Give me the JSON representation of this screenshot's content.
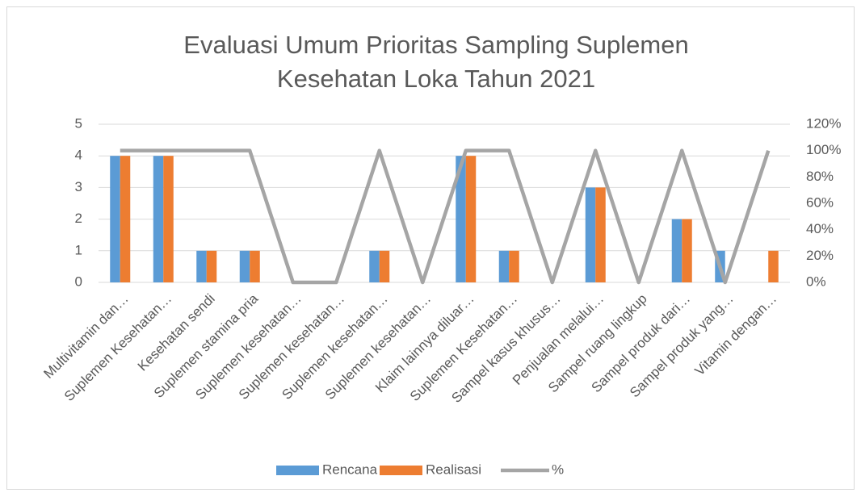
{
  "chart_data": {
    "type": "bar",
    "title": [
      "Evaluasi Umum Prioritas Sampling Suplemen",
      "Kesehatan Loka Tahun 2021"
    ],
    "categories": [
      "Multivitamin dan…",
      "Suplemen Kesehatan…",
      "Kesehatan sendi",
      "Suplemen stamina pria",
      "Suplemen kesehatan…",
      "Suplemen kesehatan…",
      "Suplemen kesehatan…",
      "Suplemen kesehatan…",
      "Klaim lainnya diluar…",
      "Suplemen Kesehatan…",
      "Sampel kasus khusus…",
      "Penjualan melalui…",
      "Sampel ruang lingkup",
      "Sampel produk dari…",
      "Sampel produk yang…",
      "Vitamin dengan…"
    ],
    "series": [
      {
        "name": "Rencana",
        "color": "#5b9bd5",
        "type": "bar",
        "values": [
          4,
          4,
          1,
          1,
          0,
          0,
          1,
          0,
          4,
          1,
          0,
          3,
          0,
          2,
          1,
          0
        ]
      },
      {
        "name": "Realisasi",
        "color": "#ed7d31",
        "type": "bar",
        "values": [
          4,
          4,
          1,
          1,
          0,
          0,
          1,
          0,
          4,
          1,
          0,
          3,
          0,
          2,
          0,
          1
        ]
      },
      {
        "name": "%",
        "color": "#a5a5a5",
        "type": "line",
        "axis": "y2",
        "values": [
          100,
          100,
          100,
          100,
          0,
          0,
          100,
          0,
          100,
          100,
          0,
          100,
          0,
          100,
          0,
          100
        ]
      }
    ],
    "ylim": [
      0,
      5
    ],
    "yticks": [
      0,
      1,
      2,
      3,
      4,
      5
    ],
    "y2lim": [
      0,
      120
    ],
    "y2ticks": [
      {
        "value": 0,
        "label": "0%"
      },
      {
        "value": 20,
        "label": "20%"
      },
      {
        "value": 40,
        "label": "40%"
      },
      {
        "value": 60,
        "label": "60%"
      },
      {
        "value": 80,
        "label": "80%"
      },
      {
        "value": 100,
        "label": "100%"
      },
      {
        "value": 120,
        "label": "120%"
      }
    ],
    "grid": true,
    "legend": "bottom"
  }
}
